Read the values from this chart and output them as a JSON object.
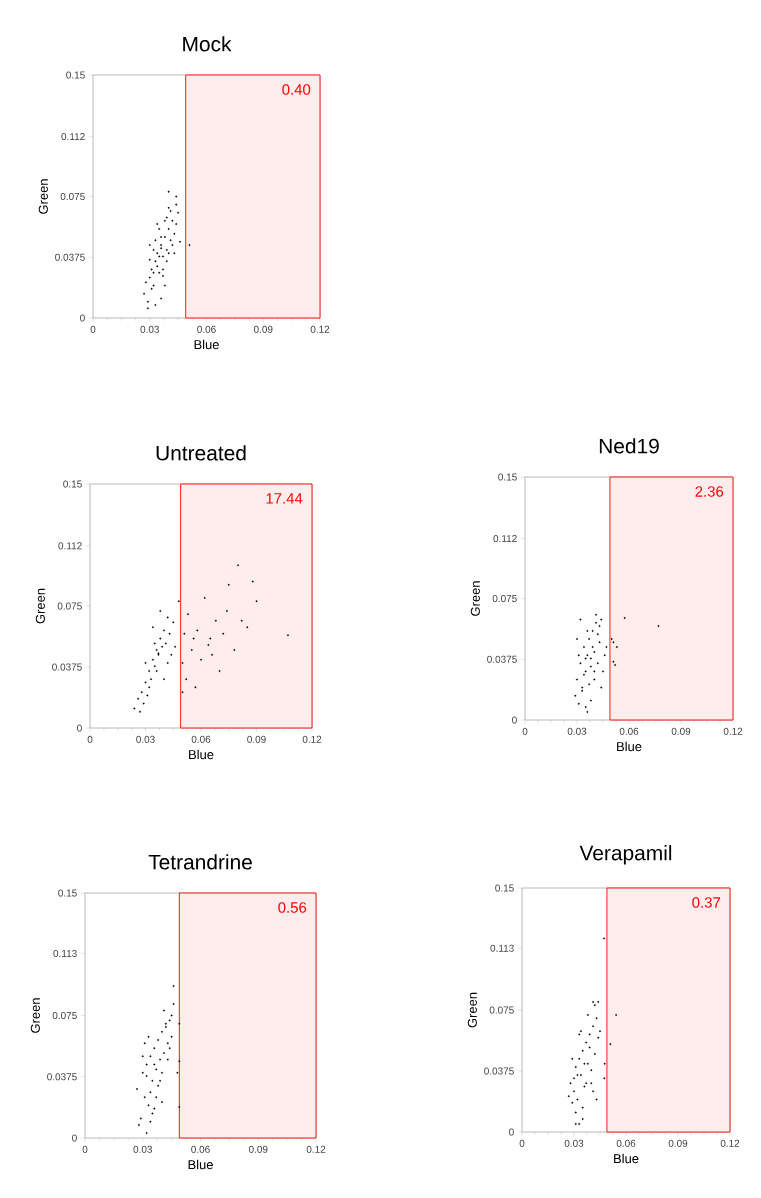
{
  "chart_data": [
    {
      "type": "scatter",
      "title": "Mock",
      "xlabel": "Blue",
      "ylabel": "Green",
      "marker": "circle",
      "color": "#000000",
      "xlim": [
        0,
        0.12
      ],
      "ylim": [
        0,
        0.15
      ],
      "xticks": [
        0,
        0.03,
        0.06,
        0.09,
        0.12
      ],
      "yticks": [
        0,
        0.0375,
        0.075,
        0.112,
        0.15
      ],
      "x": [
        0.027,
        0.029,
        0.03,
        0.031,
        0.032,
        0.033,
        0.034,
        0.035,
        0.036,
        0.037,
        0.038,
        0.039,
        0.04,
        0.041,
        0.042,
        0.043,
        0.044,
        0.045,
        0.03,
        0.032,
        0.034,
        0.036,
        0.038,
        0.04,
        0.042,
        0.031,
        0.033,
        0.035,
        0.037,
        0.039,
        0.041,
        0.043,
        0.028,
        0.029,
        0.033,
        0.036,
        0.038,
        0.04,
        0.044,
        0.046,
        0.051,
        0.04,
        0.044,
        0.03,
        0.034,
        0.037,
        0.039,
        0.035,
        0.032,
        0.036
      ],
      "values": [
        0.015,
        0.01,
        0.025,
        0.03,
        0.02,
        0.035,
        0.04,
        0.028,
        0.045,
        0.038,
        0.05,
        0.042,
        0.055,
        0.048,
        0.06,
        0.052,
        0.058,
        0.065,
        0.036,
        0.042,
        0.032,
        0.05,
        0.06,
        0.04,
        0.045,
        0.018,
        0.048,
        0.055,
        0.03,
        0.062,
        0.066,
        0.04,
        0.022,
        0.006,
        0.008,
        0.012,
        0.02,
        0.068,
        0.07,
        0.047,
        0.045,
        0.078,
        0.075,
        0.045,
        0.058,
        0.026,
        0.035,
        0.038,
        0.028,
        0.043
      ],
      "bands": [
        {
          "axis": "x",
          "from": 0.049,
          "to": 0.12,
          "label": "0.40",
          "color": "#ff0000"
        }
      ]
    },
    {
      "type": "scatter",
      "title": "Untreated",
      "xlabel": "Blue",
      "ylabel": "Green",
      "marker": "circle",
      "color": "#000000",
      "xlim": [
        0,
        0.12
      ],
      "ylim": [
        0,
        0.15
      ],
      "xticks": [
        0,
        0.03,
        0.06,
        0.09,
        0.12
      ],
      "yticks": [
        0,
        0.0375,
        0.075,
        0.112,
        0.15
      ],
      "x": [
        0.024,
        0.026,
        0.027,
        0.028,
        0.029,
        0.03,
        0.031,
        0.032,
        0.033,
        0.034,
        0.035,
        0.036,
        0.037,
        0.038,
        0.039,
        0.04,
        0.041,
        0.042,
        0.043,
        0.044,
        0.03,
        0.032,
        0.034,
        0.036,
        0.038,
        0.04,
        0.042,
        0.035,
        0.037,
        0.045,
        0.046,
        0.048,
        0.05,
        0.051,
        0.052,
        0.053,
        0.055,
        0.057,
        0.058,
        0.06,
        0.062,
        0.065,
        0.066,
        0.068,
        0.07,
        0.072,
        0.074,
        0.075,
        0.078,
        0.08,
        0.082,
        0.085,
        0.088,
        0.09,
        0.107,
        0.064,
        0.056,
        0.05
      ],
      "values": [
        0.012,
        0.018,
        0.01,
        0.022,
        0.015,
        0.028,
        0.02,
        0.035,
        0.03,
        0.042,
        0.038,
        0.048,
        0.045,
        0.055,
        0.05,
        0.06,
        0.052,
        0.068,
        0.058,
        0.045,
        0.04,
        0.025,
        0.062,
        0.035,
        0.072,
        0.03,
        0.04,
        0.052,
        0.046,
        0.065,
        0.05,
        0.078,
        0.04,
        0.058,
        0.03,
        0.07,
        0.048,
        0.025,
        0.06,
        0.042,
        0.08,
        0.055,
        0.045,
        0.066,
        0.035,
        0.058,
        0.072,
        0.088,
        0.048,
        0.1,
        0.066,
        0.062,
        0.09,
        0.078,
        0.057,
        0.051,
        0.055,
        0.022
      ],
      "bands": [
        {
          "axis": "x",
          "from": 0.049,
          "to": 0.12,
          "label": "17.44",
          "color": "#ff0000"
        }
      ]
    },
    {
      "type": "scatter",
      "title": "Ned19",
      "xlabel": "Blue",
      "ylabel": "Green",
      "marker": "circle",
      "color": "#000000",
      "xlim": [
        0,
        0.12
      ],
      "ylim": [
        0,
        0.15
      ],
      "xticks": [
        0,
        0.03,
        0.06,
        0.09,
        0.12
      ],
      "yticks": [
        0,
        0.0375,
        0.075,
        0.112,
        0.15
      ],
      "x": [
        0.029,
        0.03,
        0.031,
        0.032,
        0.033,
        0.034,
        0.035,
        0.036,
        0.037,
        0.038,
        0.039,
        0.04,
        0.041,
        0.042,
        0.043,
        0.044,
        0.045,
        0.046,
        0.03,
        0.032,
        0.034,
        0.036,
        0.038,
        0.04,
        0.042,
        0.031,
        0.033,
        0.035,
        0.037,
        0.039,
        0.041,
        0.043,
        0.035,
        0.036,
        0.038,
        0.04,
        0.044,
        0.047,
        0.05,
        0.051,
        0.053,
        0.051,
        0.052,
        0.0575,
        0.077
      ],
      "values": [
        0.015,
        0.025,
        0.01,
        0.035,
        0.02,
        0.045,
        0.03,
        0.04,
        0.05,
        0.038,
        0.055,
        0.042,
        0.06,
        0.035,
        0.048,
        0.062,
        0.03,
        0.04,
        0.05,
        0.062,
        0.028,
        0.055,
        0.033,
        0.025,
        0.053,
        0.04,
        0.018,
        0.008,
        0.022,
        0.045,
        0.065,
        0.058,
        0.038,
        0.005,
        0.012,
        0.03,
        0.02,
        0.045,
        0.05,
        0.048,
        0.045,
        0.036,
        0.034,
        0.063,
        0.058
      ],
      "bands": [
        {
          "axis": "x",
          "from": 0.049,
          "to": 0.12,
          "label": "2.36",
          "color": "#ff0000"
        }
      ]
    },
    {
      "type": "scatter",
      "title": "Tetrandrine",
      "xlabel": "Blue",
      "ylabel": "Green",
      "marker": "circle",
      "color": "#000000",
      "xlim": [
        0,
        0.12
      ],
      "ylim": [
        0,
        0.15
      ],
      "xticks": [
        0,
        0.03,
        0.06,
        0.09,
        0.12
      ],
      "yticks": [
        0,
        0.0375,
        0.075,
        0.113,
        0.15
      ],
      "x": [
        0.027,
        0.029,
        0.03,
        0.031,
        0.032,
        0.033,
        0.034,
        0.035,
        0.036,
        0.037,
        0.038,
        0.039,
        0.04,
        0.041,
        0.042,
        0.043,
        0.044,
        0.045,
        0.046,
        0.03,
        0.032,
        0.034,
        0.036,
        0.038,
        0.04,
        0.042,
        0.044,
        0.031,
        0.033,
        0.035,
        0.037,
        0.039,
        0.041,
        0.043,
        0.028,
        0.032,
        0.034,
        0.036,
        0.045,
        0.046,
        0.049,
        0.049,
        0.048,
        0.049,
        0.04
      ],
      "values": [
        0.03,
        0.012,
        0.04,
        0.025,
        0.045,
        0.02,
        0.05,
        0.035,
        0.055,
        0.042,
        0.06,
        0.048,
        0.065,
        0.052,
        0.068,
        0.058,
        0.072,
        0.062,
        0.093,
        0.05,
        0.038,
        0.028,
        0.045,
        0.032,
        0.04,
        0.07,
        0.055,
        0.058,
        0.062,
        0.015,
        0.025,
        0.035,
        0.078,
        0.048,
        0.008,
        0.003,
        0.01,
        0.018,
        0.075,
        0.082,
        0.07,
        0.019,
        0.04,
        0.047,
        0.022
      ],
      "bands": [
        {
          "axis": "x",
          "from": 0.049,
          "to": 0.12,
          "label": "0.56",
          "color": "#ff0000"
        }
      ]
    },
    {
      "type": "scatter",
      "title": "Verapamil",
      "xlabel": "Blue",
      "ylabel": "Green",
      "marker": "circle",
      "color": "#000000",
      "xlim": [
        0,
        0.12
      ],
      "ylim": [
        0,
        0.15
      ],
      "xticks": [
        0,
        0.03,
        0.06,
        0.09,
        0.12
      ],
      "yticks": [
        0,
        0.0375,
        0.075,
        0.113,
        0.15
      ],
      "x": [
        0.027,
        0.028,
        0.029,
        0.03,
        0.031,
        0.032,
        0.033,
        0.034,
        0.035,
        0.036,
        0.037,
        0.038,
        0.039,
        0.04,
        0.041,
        0.042,
        0.043,
        0.044,
        0.029,
        0.031,
        0.033,
        0.035,
        0.037,
        0.039,
        0.041,
        0.03,
        0.032,
        0.034,
        0.036,
        0.038,
        0.04,
        0.042,
        0.044,
        0.045,
        0.031,
        0.033,
        0.035,
        0.041,
        0.043,
        0.0473,
        0.0543,
        0.051,
        0.0477,
        0.0475
      ],
      "values": [
        0.022,
        0.03,
        0.018,
        0.025,
        0.04,
        0.02,
        0.045,
        0.035,
        0.05,
        0.028,
        0.055,
        0.042,
        0.06,
        0.038,
        0.065,
        0.048,
        0.07,
        0.058,
        0.045,
        0.012,
        0.06,
        0.008,
        0.03,
        0.052,
        0.08,
        0.033,
        0.035,
        0.062,
        0.042,
        0.072,
        0.03,
        0.078,
        0.08,
        0.062,
        0.005,
        0.005,
        0.015,
        0.025,
        0.02,
        0.119,
        0.072,
        0.054,
        0.042,
        0.033
      ],
      "bands": [
        {
          "axis": "x",
          "from": 0.049,
          "to": 0.12,
          "label": "0.37",
          "color": "#ff0000"
        }
      ]
    }
  ]
}
